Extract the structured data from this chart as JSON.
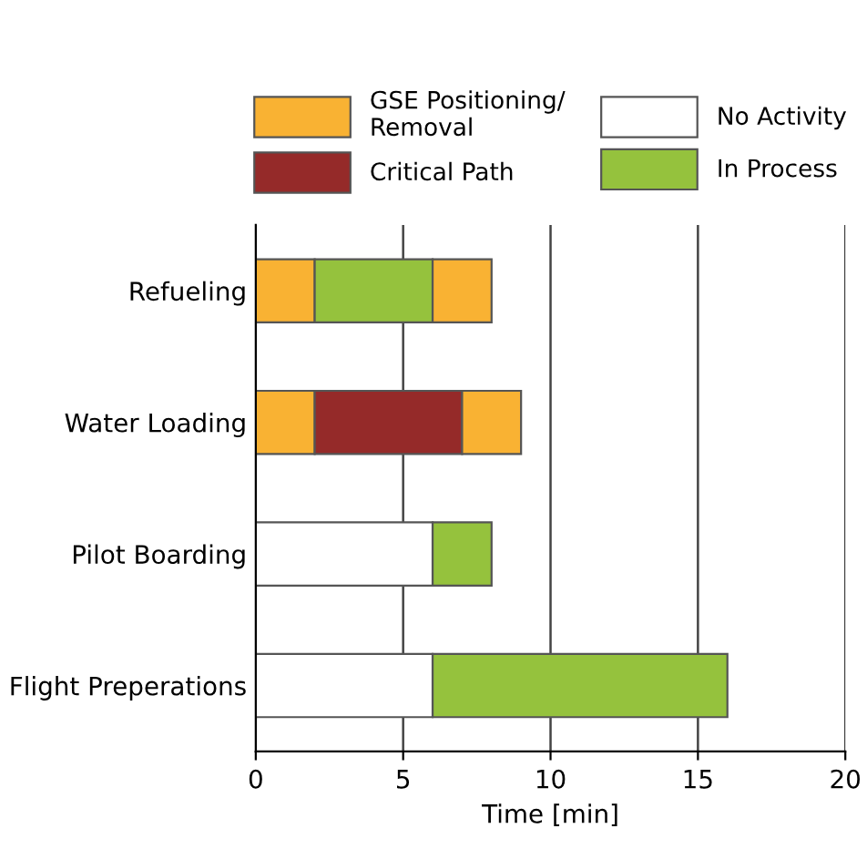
{
  "chart_data": {
    "type": "bar",
    "orientation": "horizontal",
    "categories": [
      "Refueling",
      "Water Loading",
      "Pilot Boarding",
      "Flight Preperations"
    ],
    "series": [
      {
        "name": "GSE Positioning/\nRemoval",
        "color": "#f9b233",
        "values": [
          2,
          2,
          null,
          null
        ],
        "base": [
          0,
          0,
          null,
          null
        ]
      },
      {
        "name": "Critical Path",
        "color": "#952a29",
        "values": [
          null,
          5,
          null,
          null
        ],
        "base": [
          null,
          2,
          null,
          null
        ]
      },
      {
        "name": "No Activity",
        "color": "#ffffff",
        "values": [
          null,
          null,
          6,
          6
        ],
        "base": [
          null,
          null,
          0,
          0
        ]
      },
      {
        "name": "In Process",
        "color": "#95c23d",
        "values": [
          4,
          null,
          2,
          10
        ],
        "base": [
          2,
          null,
          6,
          6
        ]
      },
      {
        "color": "#f9b233",
        "values": [
          2,
          2,
          null,
          null
        ],
        "base": [
          6,
          7,
          null,
          null
        ]
      }
    ],
    "xlabel": "Time [min]",
    "xlim": [
      0,
      20
    ],
    "xticks": [
      0,
      5,
      10,
      15,
      20
    ],
    "grid": "x",
    "legend": "top"
  }
}
